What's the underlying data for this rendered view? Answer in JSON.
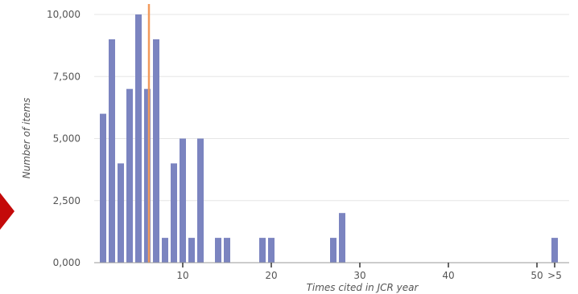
{
  "chart_data": {
    "type": "bar",
    "xlabel": "Times cited in JCR year",
    "ylabel": "Number of items",
    "xlim": [
      0,
      52
    ],
    "ylim": [
      0,
      10000
    ],
    "y_ticks": [
      {
        "value": 0,
        "label": "0,000"
      },
      {
        "value": 2500,
        "label": "2,500"
      },
      {
        "value": 5000,
        "label": "5,000"
      },
      {
        "value": 7500,
        "label": "7,500"
      },
      {
        "value": 10000,
        "label": "10,000"
      }
    ],
    "x_ticks": [
      {
        "value": 10,
        "label": "10"
      },
      {
        "value": 20,
        "label": "20"
      },
      {
        "value": 30,
        "label": "30"
      },
      {
        "value": 40,
        "label": "40"
      },
      {
        "value": 50,
        "label": "50"
      },
      {
        "value": 52,
        "label": ">5"
      }
    ],
    "x": [
      1,
      2,
      3,
      4,
      5,
      6,
      7,
      8,
      9,
      10,
      11,
      12,
      14,
      15,
      19,
      20,
      27,
      28,
      52
    ],
    "values": [
      6000,
      9000,
      4000,
      7000,
      10000,
      7000,
      9000,
      1000,
      4000,
      5000,
      1000,
      5000,
      1000,
      1000,
      1000,
      1000,
      1000,
      2000,
      1000
    ],
    "reference_line_x": 6,
    "grid": "horizontal",
    "colors": {
      "bar": "#7b84c0",
      "reference_line": "#f29a5c",
      "grid": "#e6e6e6",
      "axis": "#9a9a9a"
    }
  },
  "decoration": {
    "pointer_color": "#c40a0a"
  }
}
